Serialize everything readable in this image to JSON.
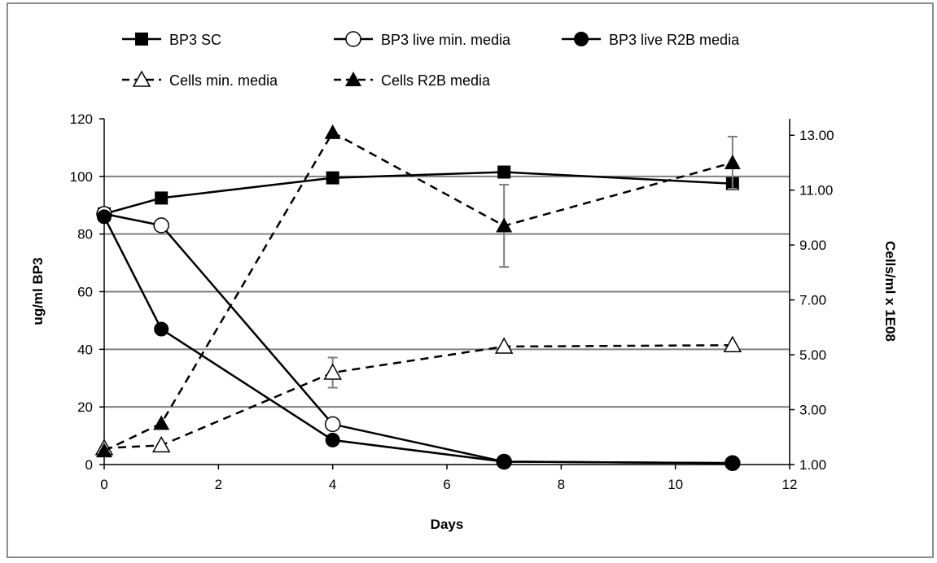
{
  "chart_data": {
    "type": "line",
    "xlabel": "Days",
    "ylabel_left": "ug/ml BP3",
    "ylabel_right": "Cells/ml  x 1E08",
    "x_range": [
      0,
      12
    ],
    "x_ticks": [
      "0",
      "2",
      "4",
      "6",
      "8",
      "10",
      "12"
    ],
    "y_left_range": [
      0,
      120
    ],
    "y_left_ticks": [
      "0",
      "20",
      "40",
      "60",
      "80",
      "100",
      "120"
    ],
    "y_right_range": [
      1,
      13.0
    ],
    "y_right_ticks": [
      "1.00",
      "3.00",
      "5.00",
      "7.00",
      "9.00",
      "11.00",
      "13.00"
    ],
    "grid": "horizontal",
    "legend_position": "top",
    "colors": {
      "line": "#000000",
      "grid": "#808080",
      "errorbar": "#7f7f7f"
    },
    "series": [
      {
        "name": "BP3 SC",
        "axis": "left",
        "marker": "square-filled",
        "dash": "solid",
        "x": [
          0,
          1,
          4,
          7,
          11
        ],
        "y": [
          87,
          92.5,
          99.5,
          101.5,
          97.5
        ]
      },
      {
        "name": "BP3 live min. media",
        "axis": "left",
        "marker": "circle-open",
        "dash": "solid",
        "x": [
          0,
          1,
          4,
          7,
          11
        ],
        "y": [
          87,
          83,
          14,
          1,
          0.5
        ]
      },
      {
        "name": "BP3 live R2B media",
        "axis": "left",
        "marker": "circle-filled",
        "dash": "solid",
        "x": [
          0,
          1,
          4,
          7,
          11
        ],
        "y": [
          86,
          47,
          8.5,
          1,
          0.5
        ]
      },
      {
        "name": "Cells min. media",
        "axis": "right",
        "marker": "triangle-open",
        "dash": "dashed",
        "x": [
          0,
          1,
          4,
          7,
          11
        ],
        "y": [
          1.6,
          1.7,
          4.35,
          5.3,
          5.35
        ],
        "err": [
          0,
          0,
          0.55,
          0,
          0
        ]
      },
      {
        "name": "Cells R2B media",
        "axis": "right",
        "marker": "triangle-filled",
        "dash": "dashed",
        "x": [
          0,
          1,
          4,
          7,
          11
        ],
        "y": [
          1.5,
          2.5,
          13.1,
          9.7,
          12.0
        ],
        "err": [
          0,
          0,
          0,
          1.5,
          0.95
        ]
      }
    ]
  }
}
